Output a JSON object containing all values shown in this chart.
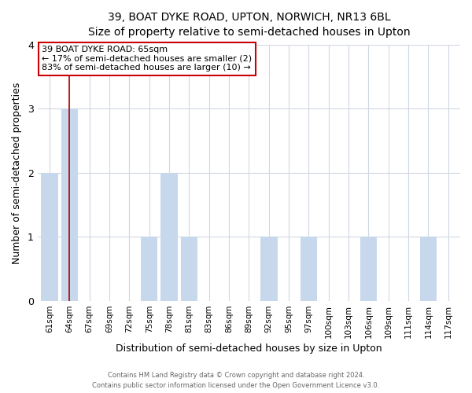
{
  "title_line1": "39, BOAT DYKE ROAD, UPTON, NORWICH, NR13 6BL",
  "title_line2": "Size of property relative to semi-detached houses in Upton",
  "xlabel": "Distribution of semi-detached houses by size in Upton",
  "ylabel": "Number of semi-detached properties",
  "categories": [
    "61sqm",
    "64sqm",
    "67sqm",
    "69sqm",
    "72sqm",
    "75sqm",
    "78sqm",
    "81sqm",
    "83sqm",
    "86sqm",
    "89sqm",
    "92sqm",
    "95sqm",
    "97sqm",
    "100sqm",
    "103sqm",
    "106sqm",
    "109sqm",
    "111sqm",
    "114sqm",
    "117sqm"
  ],
  "values": [
    2,
    3,
    0,
    0,
    0,
    1,
    2,
    1,
    0,
    0,
    0,
    1,
    0,
    1,
    0,
    0,
    1,
    0,
    0,
    1,
    0
  ],
  "bar_color": "#c8d8ec",
  "highlight_line_color": "#aa0000",
  "highlight_line_index": 1,
  "ylim": [
    0,
    4
  ],
  "yticks": [
    0,
    1,
    2,
    3,
    4
  ],
  "annotation_title": "39 BOAT DYKE ROAD: 65sqm",
  "annotation_line1": "← 17% of semi-detached houses are smaller (2)",
  "annotation_line2": "83% of semi-detached houses are larger (10) →",
  "annotation_box_color": "#ffffff",
  "annotation_box_edge": "#cc0000",
  "footer_line1": "Contains HM Land Registry data © Crown copyright and database right 2024.",
  "footer_line2": "Contains public sector information licensed under the Open Government Licence v3.0.",
  "background_color": "#ffffff",
  "grid_color": "#d0d8e4"
}
